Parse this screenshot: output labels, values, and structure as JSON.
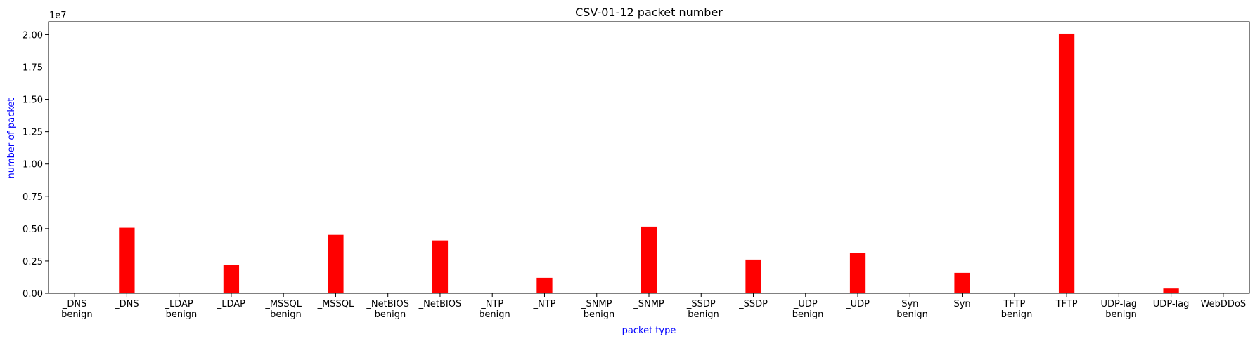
{
  "chart_data": {
    "type": "bar",
    "title": "CSV-01-12 packet number",
    "xlabel": "packet type",
    "ylabel": "number of packet",
    "y_offset_label": "1e7",
    "ylim": [
      0,
      21000000
    ],
    "yticks": [
      0,
      2500000,
      5000000,
      7500000,
      10000000,
      12500000,
      15000000,
      17500000,
      20000000
    ],
    "ytick_labels": [
      "0.00",
      "0.25",
      "0.50",
      "0.75",
      "1.00",
      "1.25",
      "1.50",
      "1.75",
      "2.00"
    ],
    "bar_color": "#ff0000",
    "label_color": "#0000ff",
    "grid": false,
    "categories": [
      [
        "_DNS",
        "_benign"
      ],
      [
        "_DNS"
      ],
      [
        "_LDAP",
        "_benign"
      ],
      [
        "_LDAP"
      ],
      [
        "_MSSQL",
        "_benign"
      ],
      [
        "_MSSQL"
      ],
      [
        "_NetBIOS",
        "_benign"
      ],
      [
        "_NetBIOS"
      ],
      [
        "_NTP",
        "_benign"
      ],
      [
        "_NTP"
      ],
      [
        "_SNMP",
        "_benign"
      ],
      [
        "_SNMP"
      ],
      [
        "_SSDP",
        "_benign"
      ],
      [
        "_SSDP"
      ],
      [
        "_UDP",
        "_benign"
      ],
      [
        "_UDP"
      ],
      [
        "Syn",
        "_benign"
      ],
      [
        "Syn"
      ],
      [
        "TFTP",
        "_benign"
      ],
      [
        "TFTP"
      ],
      [
        "UDP-lag",
        "_benign"
      ],
      [
        "UDP-lag"
      ],
      [
        "WebDDoS"
      ]
    ],
    "values": [
      3000,
      5070000,
      2000,
      2180000,
      1000,
      4520000,
      1500,
      4090000,
      4000,
      1200000,
      2000,
      5160000,
      8000,
      2610000,
      3000,
      3130000,
      1000,
      1580000,
      2000,
      20080000,
      4000,
      370000,
      400
    ]
  }
}
